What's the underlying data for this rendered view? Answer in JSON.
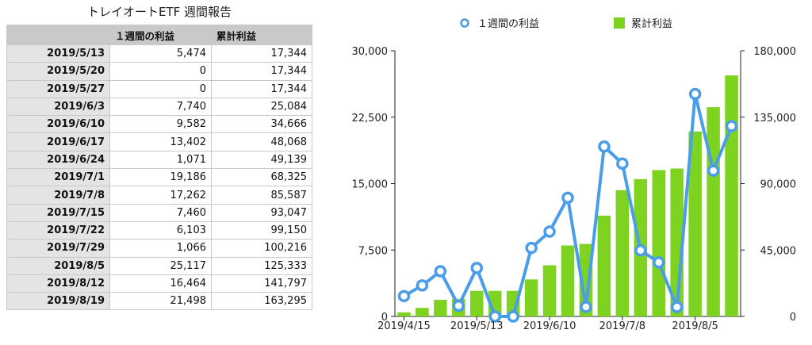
{
  "table": {
    "title": "トレイオートETF 週間報告",
    "headers": [
      "",
      "１週間の利益",
      "累計利益"
    ],
    "rows": [
      {
        "date": "2019/5/13",
        "weekly": "5,474",
        "cumulative": "17,344"
      },
      {
        "date": "2019/5/20",
        "weekly": "0",
        "cumulative": "17,344"
      },
      {
        "date": "2019/5/27",
        "weekly": "0",
        "cumulative": "17,344"
      },
      {
        "date": "2019/6/3",
        "weekly": "7,740",
        "cumulative": "25,084"
      },
      {
        "date": "2019/6/10",
        "weekly": "9,582",
        "cumulative": "34,666"
      },
      {
        "date": "2019/6/17",
        "weekly": "13,402",
        "cumulative": "48,068"
      },
      {
        "date": "2019/6/24",
        "weekly": "1,071",
        "cumulative": "49,139"
      },
      {
        "date": "2019/7/1",
        "weekly": "19,186",
        "cumulative": "68,325"
      },
      {
        "date": "2019/7/8",
        "weekly": "17,262",
        "cumulative": "85,587"
      },
      {
        "date": "2019/7/15",
        "weekly": "7,460",
        "cumulative": "93,047"
      },
      {
        "date": "2019/7/22",
        "weekly": "6,103",
        "cumulative": "99,150"
      },
      {
        "date": "2019/7/29",
        "weekly": "1,066",
        "cumulative": "100,216"
      },
      {
        "date": "2019/8/5",
        "weekly": "25,117",
        "cumulative": "125,333"
      },
      {
        "date": "2019/8/12",
        "weekly": "16,464",
        "cumulative": "141,797"
      },
      {
        "date": "2019/8/19",
        "weekly": "21,498",
        "cumulative": "163,295"
      }
    ]
  },
  "chart_data": {
    "type": "bar",
    "legend_placement": "top",
    "categories": [
      "2019/4/15",
      "2019/4/22",
      "2019/4/29",
      "2019/5/6",
      "2019/5/13",
      "2019/5/20",
      "2019/5/27",
      "2019/6/3",
      "2019/6/10",
      "2019/6/17",
      "2019/6/24",
      "2019/7/1",
      "2019/7/8",
      "2019/7/15",
      "2019/7/22",
      "2019/7/29",
      "2019/8/5",
      "2019/8/12",
      "2019/8/19"
    ],
    "x_tick_labels": [
      "2019/4/15",
      "2019/5/13",
      "2019/6/10",
      "2019/7/8",
      "2019/8/5"
    ],
    "series": [
      {
        "name": "累計利益",
        "type": "bar",
        "axis": "right",
        "color": "#7ed321",
        "values": [
          2800,
          5800,
          11300,
          11870,
          17344,
          17344,
          17344,
          25084,
          34666,
          48068,
          49139,
          68325,
          85587,
          93047,
          99150,
          100216,
          125333,
          141797,
          163295
        ]
      },
      {
        "name": "１週間の利益",
        "type": "line",
        "axis": "left",
        "color": "#4a9de8",
        "values": [
          2300,
          3500,
          5100,
          1200,
          5474,
          0,
          0,
          7740,
          9582,
          13402,
          1071,
          19186,
          17262,
          7460,
          6103,
          1066,
          25117,
          16464,
          21498
        ]
      }
    ],
    "ylim_left": [
      0,
      30000
    ],
    "yticks_left": [
      "0",
      "7,500",
      "15,000",
      "22,500",
      "30,000"
    ],
    "ylim_right": [
      0,
      180000
    ],
    "yticks_right": [
      "0",
      "45,000",
      "90,000",
      "135,000",
      "180,000"
    ],
    "grid": false
  }
}
